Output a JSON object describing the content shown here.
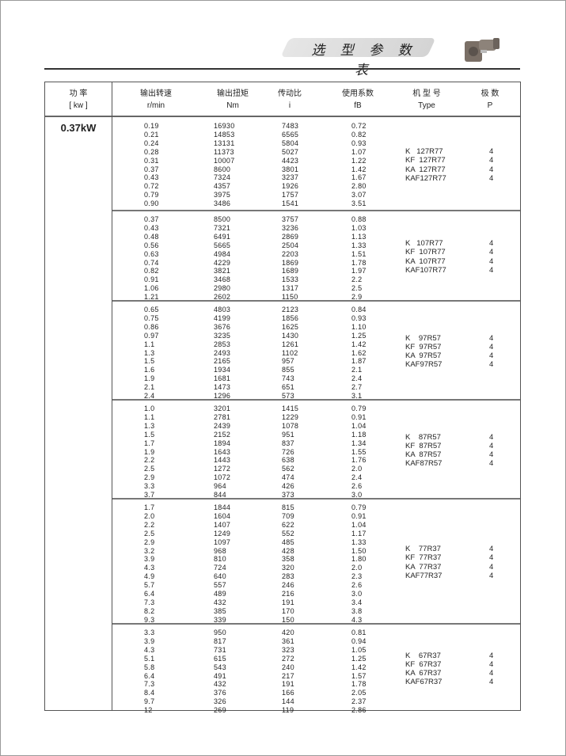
{
  "header": {
    "title": "选 型 参 数 表"
  },
  "columns": [
    {
      "zh": "功  率",
      "unit": "[ kw ]"
    },
    {
      "zh": "输出转速",
      "unit": "r/min"
    },
    {
      "zh": "输出扭矩",
      "unit": "Nm"
    },
    {
      "zh": "传动比",
      "unit": "i"
    },
    {
      "zh": "使用系数",
      "unit": "fB"
    },
    {
      "zh": "机 型 号",
      "unit": "Type"
    },
    {
      "zh": "极  数",
      "unit": "P"
    }
  ],
  "power": "0.37kW",
  "blocks": [
    {
      "rows": [
        [
          "0.19",
          "16930",
          "7483",
          "0.72"
        ],
        [
          "0.21",
          "14853",
          "6565",
          "0.82"
        ],
        [
          "0.24",
          "13131",
          "5804",
          "0.93"
        ],
        [
          "0.28",
          "11373",
          "5027",
          "1.07"
        ],
        [
          "0.31",
          "10007",
          "4423",
          "1.22"
        ],
        [
          "0.37",
          "8600",
          "3801",
          "1.42"
        ],
        [
          "0.43",
          "7324",
          "3237",
          "1.67"
        ],
        [
          "0.72",
          "4357",
          "1926",
          "2.80"
        ],
        [
          "0.79",
          "3975",
          "1757",
          "3.07"
        ],
        [
          "0.90",
          "3486",
          "1541",
          "3.51"
        ]
      ],
      "types": [
        "K   127R77",
        "KF  127R77",
        "KA  127R77",
        "KAF127R77"
      ],
      "poles": [
        "4",
        "4",
        "4",
        "4"
      ]
    },
    {
      "rows": [
        [
          "0.37",
          "8500",
          "3757",
          "0.88"
        ],
        [
          "0.43",
          "7321",
          "3236",
          "1.03"
        ],
        [
          "0.48",
          "6491",
          "2869",
          "1.13"
        ],
        [
          "0.56",
          "5665",
          "2504",
          "1.33"
        ],
        [
          "0.63",
          "4984",
          "2203",
          "1.51"
        ],
        [
          "0.74",
          "4229",
          "1869",
          "1.78"
        ],
        [
          "0.82",
          "3821",
          "1689",
          "1.97"
        ],
        [
          "0.91",
          "3468",
          "1533",
          "2.2"
        ],
        [
          "1.06",
          "2980",
          "1317",
          "2.5"
        ],
        [
          "1.21",
          "2602",
          "1150",
          "2.9"
        ]
      ],
      "types": [
        "K   107R77",
        "KF  107R77",
        "KA  107R77",
        "KAF107R77"
      ],
      "poles": [
        "4",
        "4",
        "4",
        "4"
      ]
    },
    {
      "rows": [
        [
          "0.65",
          "4803",
          "2123",
          "0.84"
        ],
        [
          "0.75",
          "4199",
          "1856",
          "0.93"
        ],
        [
          "0.86",
          "3676",
          "1625",
          "1.10"
        ],
        [
          "0.97",
          "3235",
          "1430",
          "1.25"
        ],
        [
          "1.1",
          "2853",
          "1261",
          "1.42"
        ],
        [
          "1.3",
          "2493",
          "1102",
          "1.62"
        ],
        [
          "1.5",
          "2165",
          "957",
          "1.87"
        ],
        [
          "1.6",
          "1934",
          "855",
          "2.1"
        ],
        [
          "1.9",
          "1681",
          "743",
          "2.4"
        ],
        [
          "2.1",
          "1473",
          "651",
          "2.7"
        ],
        [
          "2.4",
          "1296",
          "573",
          "3.1"
        ]
      ],
      "types": [
        "K    97R57",
        "KF  97R57",
        "KA  97R57",
        "KAF97R57"
      ],
      "poles": [
        "4",
        "4",
        "4",
        "4"
      ]
    },
    {
      "rows": [
        [
          "1.0",
          "3201",
          "1415",
          "0.79"
        ],
        [
          "1.1",
          "2781",
          "1229",
          "0.91"
        ],
        [
          "1.3",
          "2439",
          "1078",
          "1.04"
        ],
        [
          "1.5",
          "2152",
          "951",
          "1.18"
        ],
        [
          "1.7",
          "1894",
          "837",
          "1.34"
        ],
        [
          "1.9",
          "1643",
          "726",
          "1.55"
        ],
        [
          "2.2",
          "1443",
          "638",
          "1.76"
        ],
        [
          "2.5",
          "1272",
          "562",
          "2.0"
        ],
        [
          "2.9",
          "1072",
          "474",
          "2.4"
        ],
        [
          "3.3",
          "964",
          "426",
          "2.6"
        ],
        [
          "3.7",
          "844",
          "373",
          "3.0"
        ]
      ],
      "types": [
        "K    87R57",
        "KF  87R57",
        "KA  87R57",
        "KAF87R57"
      ],
      "poles": [
        "4",
        "4",
        "4",
        "4"
      ]
    },
    {
      "rows": [
        [
          "1.7",
          "1844",
          "815",
          "0.79"
        ],
        [
          "2.0",
          "1604",
          "709",
          "0.91"
        ],
        [
          "2.2",
          "1407",
          "622",
          "1.04"
        ],
        [
          "2.5",
          "1249",
          "552",
          "1.17"
        ],
        [
          "2.9",
          "1097",
          "485",
          "1.33"
        ],
        [
          "3.2",
          "968",
          "428",
          "1.50"
        ],
        [
          "3.9",
          "810",
          "358",
          "1.80"
        ],
        [
          "4.3",
          "724",
          "320",
          "2.0"
        ],
        [
          "4.9",
          "640",
          "283",
          "2.3"
        ],
        [
          "5.7",
          "557",
          "246",
          "2.6"
        ],
        [
          "6.4",
          "489",
          "216",
          "3.0"
        ],
        [
          "7.3",
          "432",
          "191",
          "3.4"
        ],
        [
          "8.2",
          "385",
          "170",
          "3.8"
        ],
        [
          "9.3",
          "339",
          "150",
          "4.3"
        ]
      ],
      "types": [
        "K    77R37",
        "KF  77R37",
        "KA  77R37",
        "KAF77R37"
      ],
      "poles": [
        "4",
        "4",
        "4",
        "4"
      ]
    },
    {
      "rows": [
        [
          "3.3",
          "950",
          "420",
          "0.81"
        ],
        [
          "3.9",
          "817",
          "361",
          "0.94"
        ],
        [
          "4.3",
          "731",
          "323",
          "1.05"
        ],
        [
          "5.1",
          "615",
          "272",
          "1.25"
        ],
        [
          "5.8",
          "543",
          "240",
          "1.42"
        ],
        [
          "6.4",
          "491",
          "217",
          "1.57"
        ],
        [
          "7.3",
          "432",
          "191",
          "1.78"
        ],
        [
          "8.4",
          "376",
          "166",
          "2.05"
        ],
        [
          "9.7",
          "326",
          "144",
          "2.37"
        ],
        [
          "12",
          "269",
          "119",
          "2.86"
        ]
      ],
      "types": [
        "K    67R37",
        "KF  67R37",
        "KA  67R37",
        "KAF67R37"
      ],
      "poles": [
        "4",
        "4",
        "4",
        "4"
      ]
    }
  ]
}
